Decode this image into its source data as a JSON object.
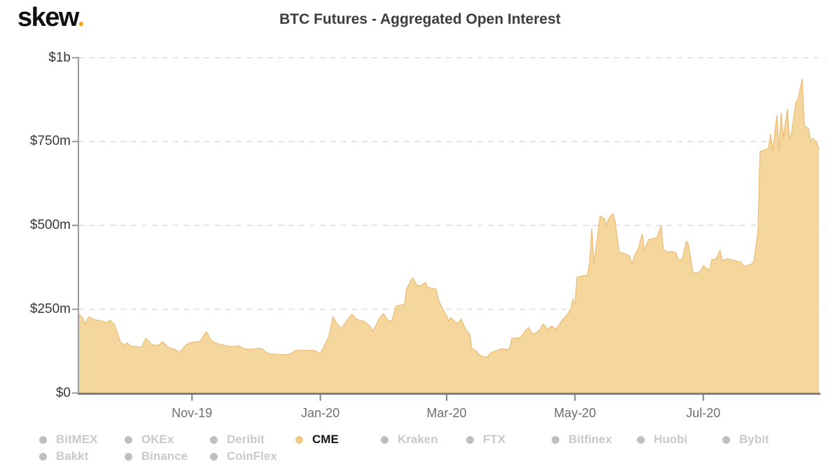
{
  "header": {
    "logo_text": "skew",
    "logo_dot": ".",
    "title": "BTC Futures - Aggregated Open Interest"
  },
  "colors": {
    "area_fill": "#F5D79E",
    "area_edge": "#EBC17D",
    "gridline": "#dcdcdc",
    "y_axis_line": "#9a9a9a",
    "x_axis_line": "#7f7f7f",
    "active_dot": "#F1C984",
    "inactive_dot": "#BFBFBF",
    "logo_dot_color": "#F2A51D"
  },
  "legend": {
    "rows": [
      [
        {
          "label": "BitMEX",
          "active": false
        },
        {
          "label": "OKEx",
          "active": false
        },
        {
          "label": "Deribit",
          "active": false
        },
        {
          "label": "CME",
          "active": true
        },
        {
          "label": "Kraken",
          "active": false
        },
        {
          "label": "FTX",
          "active": false
        },
        {
          "label": "Bitfinex",
          "active": false
        },
        {
          "label": "Huobi",
          "active": false
        },
        {
          "label": "Bybit",
          "active": false
        }
      ],
      [
        {
          "label": "Bakkt",
          "active": false
        },
        {
          "label": "Binance",
          "active": false
        },
        {
          "label": "CoinFlex",
          "active": false
        }
      ]
    ]
  },
  "chart_data": {
    "type": "area",
    "title": "BTC Futures - Aggregated Open Interest",
    "series_name": "CME",
    "unit": "USD millions",
    "grid": "dashed-horizontal",
    "legend_position": "bottom",
    "x_range": [
      "2019-09-08",
      "2020-08-25"
    ],
    "ylim": [
      0,
      1000
    ],
    "y_ticks": [
      {
        "label": "$0",
        "value": 0
      },
      {
        "label": "$250m",
        "value": 250
      },
      {
        "label": "$500m",
        "value": 500
      },
      {
        "label": "$750m",
        "value": 750
      },
      {
        "label": "$1b",
        "value": 1000
      }
    ],
    "x_ticks": [
      {
        "label": "Nov-19",
        "date": "2019-11-01"
      },
      {
        "label": "Jan-20",
        "date": "2020-01-01"
      },
      {
        "label": "Mar-20",
        "date": "2020-03-01"
      },
      {
        "label": "May-20",
        "date": "2020-05-01"
      },
      {
        "label": "Jul-20",
        "date": "2020-07-01"
      }
    ],
    "points": [
      [
        "2019-09-08",
        236
      ],
      [
        "2019-09-10",
        224
      ],
      [
        "2019-09-11",
        206
      ],
      [
        "2019-09-13",
        227
      ],
      [
        "2019-09-16",
        218
      ],
      [
        "2019-09-19",
        215
      ],
      [
        "2019-09-21",
        210
      ],
      [
        "2019-09-23",
        217
      ],
      [
        "2019-09-25",
        205
      ],
      [
        "2019-09-28",
        152
      ],
      [
        "2019-09-30",
        142
      ],
      [
        "2019-10-01",
        150
      ],
      [
        "2019-10-03",
        140
      ],
      [
        "2019-10-06",
        138
      ],
      [
        "2019-10-08",
        137
      ],
      [
        "2019-10-10",
        163
      ],
      [
        "2019-10-13",
        144
      ],
      [
        "2019-10-16",
        142
      ],
      [
        "2019-10-18",
        153
      ],
      [
        "2019-10-21",
        135
      ],
      [
        "2019-10-24",
        130
      ],
      [
        "2019-10-26",
        121
      ],
      [
        "2019-10-29",
        143
      ],
      [
        "2019-10-31",
        150
      ],
      [
        "2019-11-02",
        152
      ],
      [
        "2019-11-05",
        155
      ],
      [
        "2019-11-07",
        176
      ],
      [
        "2019-11-08",
        182
      ],
      [
        "2019-11-10",
        157
      ],
      [
        "2019-11-13",
        147
      ],
      [
        "2019-11-16",
        143
      ],
      [
        "2019-11-20",
        138
      ],
      [
        "2019-11-23",
        141
      ],
      [
        "2019-11-26",
        132
      ],
      [
        "2019-11-29",
        130
      ],
      [
        "2019-12-02",
        133
      ],
      [
        "2019-12-04",
        133
      ],
      [
        "2019-12-06",
        122
      ],
      [
        "2019-12-08",
        117
      ],
      [
        "2019-12-12",
        115
      ],
      [
        "2019-12-15",
        114
      ],
      [
        "2019-12-18",
        117
      ],
      [
        "2019-12-20",
        126
      ],
      [
        "2019-12-23",
        128
      ],
      [
        "2019-12-27",
        127
      ],
      [
        "2019-12-29",
        127
      ],
      [
        "2020-01-01",
        118
      ],
      [
        "2020-01-03",
        143
      ],
      [
        "2020-01-05",
        167
      ],
      [
        "2020-01-06",
        198
      ],
      [
        "2020-01-07",
        227
      ],
      [
        "2020-01-09",
        206
      ],
      [
        "2020-01-11",
        192
      ],
      [
        "2020-01-13",
        211
      ],
      [
        "2020-01-16",
        235
      ],
      [
        "2020-01-18",
        222
      ],
      [
        "2020-01-20",
        216
      ],
      [
        "2020-01-22",
        214
      ],
      [
        "2020-01-25",
        196
      ],
      [
        "2020-01-26",
        184
      ],
      [
        "2020-01-29",
        222
      ],
      [
        "2020-01-31",
        237
      ],
      [
        "2020-02-02",
        218
      ],
      [
        "2020-02-04",
        214
      ],
      [
        "2020-02-06",
        259
      ],
      [
        "2020-02-08",
        262
      ],
      [
        "2020-02-10",
        264
      ],
      [
        "2020-02-11",
        310
      ],
      [
        "2020-02-13",
        335
      ],
      [
        "2020-02-14",
        343
      ],
      [
        "2020-02-16",
        320
      ],
      [
        "2020-02-18",
        322
      ],
      [
        "2020-02-20",
        330
      ],
      [
        "2020-02-21",
        315
      ],
      [
        "2020-02-25",
        310
      ],
      [
        "2020-02-26",
        280
      ],
      [
        "2020-02-28",
        252
      ],
      [
        "2020-03-01",
        230
      ],
      [
        "2020-03-02",
        215
      ],
      [
        "2020-03-03",
        225
      ],
      [
        "2020-03-06",
        206
      ],
      [
        "2020-03-08",
        220
      ],
      [
        "2020-03-10",
        190
      ],
      [
        "2020-03-12",
        175
      ],
      [
        "2020-03-13",
        133
      ],
      [
        "2020-03-15",
        125
      ],
      [
        "2020-03-17",
        112
      ],
      [
        "2020-03-20",
        106
      ],
      [
        "2020-03-22",
        120
      ],
      [
        "2020-03-25",
        127
      ],
      [
        "2020-03-27",
        132
      ],
      [
        "2020-03-30",
        130
      ],
      [
        "2020-03-31",
        134
      ],
      [
        "2020-04-01",
        163
      ],
      [
        "2020-04-03",
        164
      ],
      [
        "2020-04-05",
        165
      ],
      [
        "2020-04-08",
        190
      ],
      [
        "2020-04-09",
        195
      ],
      [
        "2020-04-11",
        175
      ],
      [
        "2020-04-14",
        186
      ],
      [
        "2020-04-16",
        206
      ],
      [
        "2020-04-18",
        190
      ],
      [
        "2020-04-20",
        200
      ],
      [
        "2020-04-22",
        190
      ],
      [
        "2020-04-25",
        218
      ],
      [
        "2020-04-27",
        231
      ],
      [
        "2020-04-29",
        250
      ],
      [
        "2020-04-30",
        280
      ],
      [
        "2020-05-01",
        264
      ],
      [
        "2020-05-02",
        345
      ],
      [
        "2020-05-05",
        350
      ],
      [
        "2020-05-07",
        352
      ],
      [
        "2020-05-08",
        390
      ],
      [
        "2020-05-09",
        490
      ],
      [
        "2020-05-10",
        385
      ],
      [
        "2020-05-12",
        480
      ],
      [
        "2020-05-13",
        528
      ],
      [
        "2020-05-15",
        520
      ],
      [
        "2020-05-16",
        500
      ],
      [
        "2020-05-17",
        520
      ],
      [
        "2020-05-19",
        534
      ],
      [
        "2020-05-20",
        515
      ],
      [
        "2020-05-22",
        420
      ],
      [
        "2020-05-25",
        415
      ],
      [
        "2020-05-27",
        408
      ],
      [
        "2020-05-28",
        385
      ],
      [
        "2020-05-30",
        418
      ],
      [
        "2020-05-31",
        428
      ],
      [
        "2020-06-02",
        474
      ],
      [
        "2020-06-03",
        425
      ],
      [
        "2020-06-05",
        458
      ],
      [
        "2020-06-07",
        460
      ],
      [
        "2020-06-09",
        464
      ],
      [
        "2020-06-11",
        500
      ],
      [
        "2020-06-12",
        428
      ],
      [
        "2020-06-14",
        420
      ],
      [
        "2020-06-16",
        422
      ],
      [
        "2020-06-18",
        418
      ],
      [
        "2020-06-19",
        398
      ],
      [
        "2020-06-21",
        398
      ],
      [
        "2020-06-23",
        453
      ],
      [
        "2020-06-24",
        442
      ],
      [
        "2020-06-26",
        360
      ],
      [
        "2020-06-28",
        358
      ],
      [
        "2020-06-30",
        365
      ],
      [
        "2020-07-01",
        380
      ],
      [
        "2020-07-04",
        365
      ],
      [
        "2020-07-05",
        398
      ],
      [
        "2020-07-07",
        400
      ],
      [
        "2020-07-09",
        425
      ],
      [
        "2020-07-10",
        395
      ],
      [
        "2020-07-12",
        400
      ],
      [
        "2020-07-14",
        398
      ],
      [
        "2020-07-16",
        395
      ],
      [
        "2020-07-19",
        390
      ],
      [
        "2020-07-20",
        378
      ],
      [
        "2020-07-22",
        380
      ],
      [
        "2020-07-24",
        385
      ],
      [
        "2020-07-25",
        390
      ],
      [
        "2020-07-27",
        480
      ],
      [
        "2020-07-28",
        720
      ],
      [
        "2020-07-30",
        725
      ],
      [
        "2020-08-01",
        730
      ],
      [
        "2020-08-02",
        772
      ],
      [
        "2020-08-03",
        719
      ],
      [
        "2020-08-05",
        829
      ],
      [
        "2020-08-06",
        723
      ],
      [
        "2020-08-07",
        836
      ],
      [
        "2020-08-08",
        761
      ],
      [
        "2020-08-10",
        847
      ],
      [
        "2020-08-11",
        757
      ],
      [
        "2020-08-12",
        777
      ],
      [
        "2020-08-14",
        868
      ],
      [
        "2020-08-15",
        874
      ],
      [
        "2020-08-17",
        937
      ],
      [
        "2020-08-18",
        797
      ],
      [
        "2020-08-20",
        788
      ],
      [
        "2020-08-21",
        750
      ],
      [
        "2020-08-22",
        760
      ],
      [
        "2020-08-24",
        745
      ],
      [
        "2020-08-25",
        727
      ]
    ]
  }
}
